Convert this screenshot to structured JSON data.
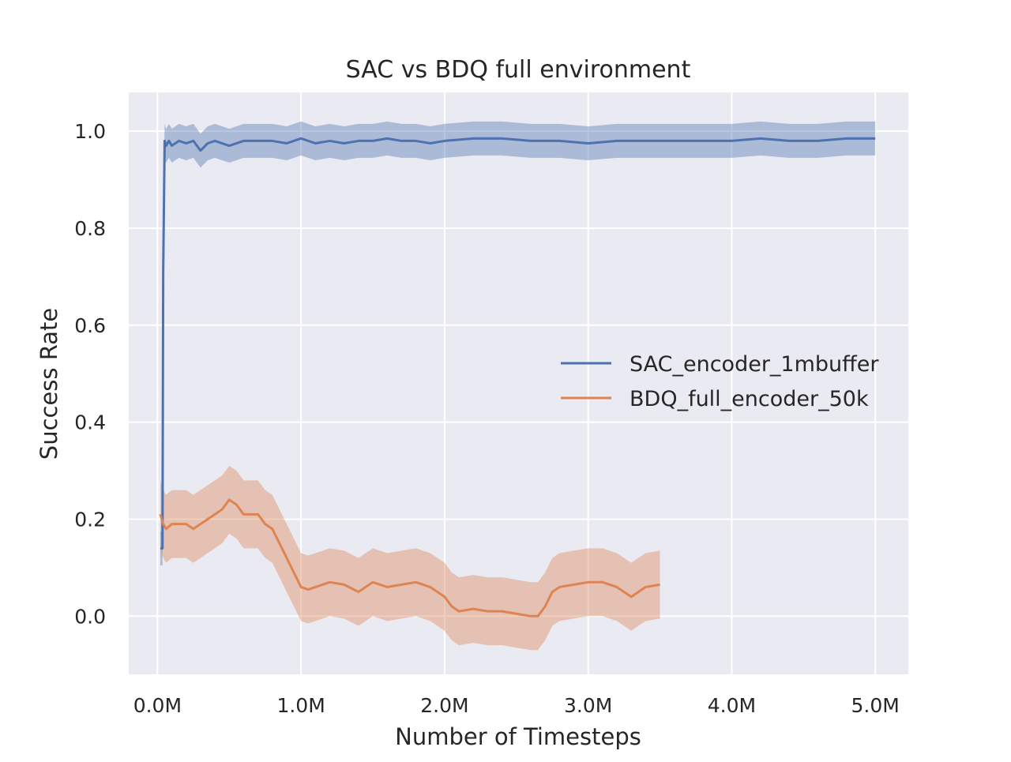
{
  "chart_data": {
    "type": "line",
    "title": "SAC vs BDQ full environment",
    "xlabel": "Number of Timesteps",
    "ylabel": "Success Rate",
    "xlim": [
      -0.2,
      5.23
    ],
    "ylim": [
      -0.12,
      1.08
    ],
    "x_unit": "M timesteps",
    "x_ticks": [
      0,
      1,
      2,
      3,
      4,
      5
    ],
    "x_tick_labels": [
      "0.0M",
      "1.0M",
      "2.0M",
      "3.0M",
      "4.0M",
      "5.0M"
    ],
    "y_ticks": [
      0.0,
      0.2,
      0.4,
      0.6,
      0.8,
      1.0
    ],
    "y_tick_labels": [
      "0.0",
      "0.2",
      "0.4",
      "0.6",
      "0.8",
      "1.0"
    ],
    "grid": true,
    "legend_position": "center-right",
    "series": [
      {
        "name": "SAC_encoder_1mbuffer",
        "color": "#4c72b0",
        "x": [
          0.02,
          0.035,
          0.04,
          0.05,
          0.06,
          0.08,
          0.1,
          0.15,
          0.2,
          0.25,
          0.3,
          0.35,
          0.4,
          0.5,
          0.6,
          0.7,
          0.8,
          0.9,
          1.0,
          1.1,
          1.2,
          1.3,
          1.4,
          1.5,
          1.6,
          1.7,
          1.8,
          1.9,
          2.0,
          2.2,
          2.4,
          2.6,
          2.8,
          3.0,
          3.2,
          3.4,
          3.6,
          3.8,
          4.0,
          4.2,
          4.4,
          4.6,
          4.8,
          5.0
        ],
        "y": [
          0.14,
          0.14,
          0.71,
          0.98,
          0.97,
          0.98,
          0.97,
          0.98,
          0.975,
          0.98,
          0.96,
          0.975,
          0.98,
          0.97,
          0.98,
          0.98,
          0.98,
          0.975,
          0.985,
          0.975,
          0.98,
          0.975,
          0.98,
          0.98,
          0.985,
          0.98,
          0.98,
          0.975,
          0.98,
          0.985,
          0.985,
          0.98,
          0.98,
          0.975,
          0.98,
          0.98,
          0.98,
          0.98,
          0.98,
          0.985,
          0.98,
          0.98,
          0.985,
          0.985
        ],
        "band": 0.035
      },
      {
        "name": "BDQ_full_encoder_50k",
        "color": "#dd8452",
        "x": [
          0.02,
          0.04,
          0.06,
          0.1,
          0.15,
          0.2,
          0.25,
          0.3,
          0.35,
          0.4,
          0.45,
          0.5,
          0.55,
          0.6,
          0.65,
          0.7,
          0.75,
          0.8,
          0.85,
          0.9,
          0.95,
          1.0,
          1.05,
          1.1,
          1.2,
          1.3,
          1.4,
          1.5,
          1.6,
          1.7,
          1.8,
          1.9,
          2.0,
          2.05,
          2.1,
          2.2,
          2.3,
          2.4,
          2.5,
          2.6,
          2.65,
          2.7,
          2.75,
          2.8,
          2.9,
          3.0,
          3.1,
          3.2,
          3.3,
          3.4,
          3.5
        ],
        "y": [
          0.21,
          0.19,
          0.18,
          0.19,
          0.19,
          0.19,
          0.18,
          0.19,
          0.2,
          0.21,
          0.22,
          0.24,
          0.23,
          0.21,
          0.21,
          0.21,
          0.19,
          0.18,
          0.15,
          0.12,
          0.09,
          0.06,
          0.055,
          0.06,
          0.07,
          0.065,
          0.05,
          0.07,
          0.06,
          0.065,
          0.07,
          0.06,
          0.04,
          0.02,
          0.01,
          0.015,
          0.01,
          0.01,
          0.005,
          0.0,
          0.0,
          0.02,
          0.05,
          0.06,
          0.065,
          0.07,
          0.07,
          0.06,
          0.04,
          0.06,
          0.065
        ],
        "band": 0.07
      }
    ]
  }
}
